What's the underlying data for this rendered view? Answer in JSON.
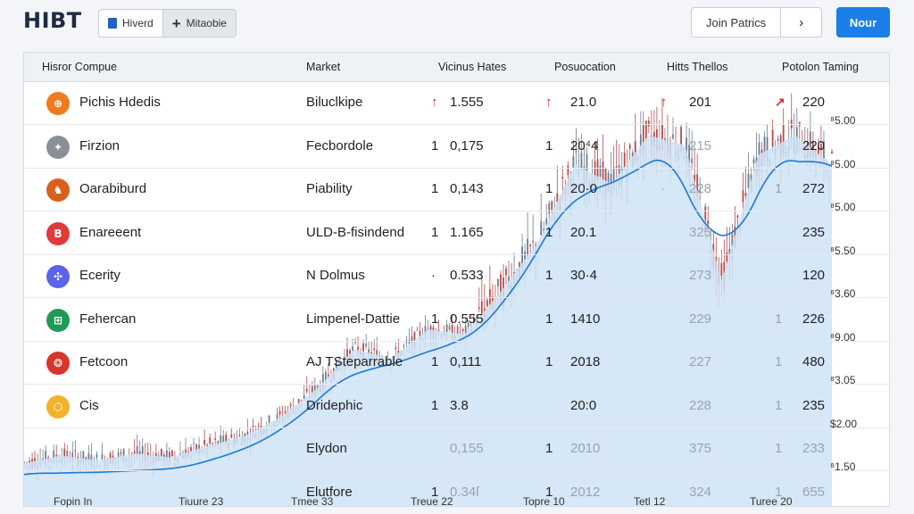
{
  "brand": "HIBT",
  "segment": {
    "items": [
      {
        "label": "Hiverd",
        "icon": "document-icon"
      },
      {
        "label": "Mitaobie",
        "icon": "plus-icon"
      }
    ]
  },
  "header_actions": {
    "join_label": "Join Patrics",
    "next_icon": "chevron-right-icon",
    "now_label": "Nour"
  },
  "table": {
    "columns": [
      "Hisror Compue",
      "Market",
      "Vicinus Hates",
      "Posuocation",
      "Hitts Thellos",
      "Potolon Taming"
    ],
    "rows": [
      {
        "name": "Pichis Hdedis",
        "market": "Biluclkipe",
        "arrow1": "↑",
        "v1": "1.555",
        "arrow2": "↑",
        "v2": "21.0",
        "arrow3": "↑",
        "v3": "201",
        "arrow4": "↗",
        "v4": "220",
        "icon_color": "#f07a1f",
        "glyph": "⊕"
      },
      {
        "name": "Firzion",
        "market": "Fecbordole",
        "arrow1": "1",
        "v1": "0,175",
        "arrow2": "1",
        "v2": "20⁴4",
        "arrow3": "",
        "v3": "215",
        "arrow4": "",
        "v4": "220",
        "icon_color": "#8a8f99",
        "glyph": "✦"
      },
      {
        "name": "Oarabiburd",
        "market": "Piability",
        "arrow1": "1",
        "v1": "0,143",
        "arrow2": "1",
        "v2": "20·0",
        "arrow3": "·",
        "v3": "228",
        "arrow4": "1",
        "v4": "272",
        "icon_color": "#d9601c",
        "glyph": "♞"
      },
      {
        "name": "Enareeent",
        "market": "ULD-B-fisindend",
        "arrow1": "1",
        "v1": "1.165",
        "arrow2": "1",
        "v2": "20.1",
        "arrow3": "",
        "v3": "325",
        "arrow4": "",
        "v4": "235",
        "icon_color": "#e23a3a",
        "glyph": "B"
      },
      {
        "name": "Ecerity",
        "market": "N Dolmus",
        "arrow1": "·",
        "v1": "0.533",
        "arrow2": "1",
        "v2": "30·4",
        "arrow3": "",
        "v3": "273",
        "arrow4": "",
        "v4": "120",
        "icon_color": "#5b63e8",
        "glyph": "✣"
      },
      {
        "name": "Fehercan",
        "market": "Limpenel-Dattie",
        "arrow1": "1",
        "v1": "0.555",
        "arrow2": "1",
        "v2": "1410",
        "arrow3": "",
        "v3": "229",
        "arrow4": "1",
        "v4": "226",
        "icon_color": "#1f9a55",
        "glyph": "⊞"
      },
      {
        "name": "Fetcoon",
        "market": "AJ TSteparrable",
        "arrow1": "1",
        "v1": "0,111",
        "arrow2": "1",
        "v2": "2018",
        "arrow3": "",
        "v3": "227",
        "arrow4": "1",
        "v4": "480",
        "icon_color": "#d8352c",
        "glyph": "❂"
      },
      {
        "name": "Cis",
        "market": "Dridephic",
        "arrow1": "1",
        "v1": "3.8",
        "arrow2": "",
        "v2": "20:0",
        "arrow3": "",
        "v3": "228",
        "arrow4": "1",
        "v4": "235",
        "icon_color": "#f2b22a",
        "glyph": "⬡"
      },
      {
        "name": "",
        "market": "Elydon",
        "arrow1": "",
        "v1": "0,155",
        "arrow2": "1",
        "v2": "2010",
        "arrow3": "",
        "v3": "375",
        "arrow4": "1",
        "v4": "233",
        "icon_color": "",
        "glyph": ""
      },
      {
        "name": "",
        "market": "Elutfore",
        "arrow1": "1",
        "v1": "0.34ſ",
        "arrow2": "1",
        "v2": "2012",
        "arrow3": "",
        "v3": "324",
        "arrow4": "1",
        "v4": "655",
        "icon_color": "",
        "glyph": ""
      }
    ]
  },
  "chart_data": {
    "type": "line",
    "y_tick_labels": [
      "⁸5.00",
      "⁸5.00",
      "⁸5.00",
      "⁸5.50",
      "⁸3.60",
      "⁸9.00",
      "⁸3.05",
      "$2.00",
      "⁸1.50"
    ],
    "x_tick_labels": [
      "Fopin In",
      "Tiuure 23",
      "Tmee 33",
      "Treue 22",
      "Topre 10",
      "Tetl 12",
      "Turee 20"
    ],
    "series": [
      {
        "name": "",
        "values": [
          1.52,
          1.6,
          1.55,
          1.62,
          1.58,
          1.7,
          1.8,
          2.0,
          2.3,
          2.7,
          2.6,
          2.9,
          2.85,
          3.3,
          3.8,
          4.6,
          4.4,
          4.9,
          4.8,
          3.4,
          4.7,
          4.9,
          4.6
        ]
      }
    ],
    "colors": {
      "line": "#1b7ad8",
      "area": "#cfe3f6",
      "candle_up": "#6b7d8f",
      "candle_down": "#b84a4a",
      "accent": "#1a7fe8"
    }
  }
}
